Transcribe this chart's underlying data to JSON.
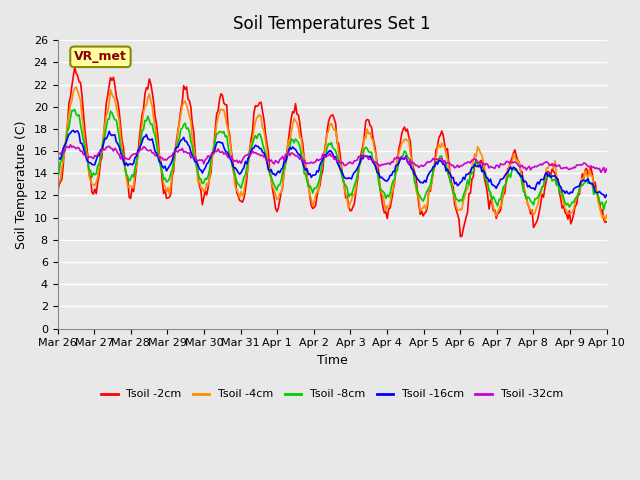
{
  "title": "Soil Temperatures Set 1",
  "xlabel": "Time",
  "ylabel": "Soil Temperature (C)",
  "ylim": [
    0,
    26
  ],
  "yticks": [
    0,
    2,
    4,
    6,
    8,
    10,
    12,
    14,
    16,
    18,
    20,
    22,
    24,
    26
  ],
  "annotation_text": "VR_met",
  "annotation_color": "#8B0000",
  "annotation_bg": "#FFFFA0",
  "series_labels": [
    "Tsoil -2cm",
    "Tsoil -4cm",
    "Tsoil -8cm",
    "Tsoil -16cm",
    "Tsoil -32cm"
  ],
  "series_colors": [
    "#FF0000",
    "#FF8C00",
    "#00CC00",
    "#0000FF",
    "#CC00CC"
  ],
  "background_color": "#E8E8E8",
  "grid_color": "#FFFFFF",
  "title_fontsize": 12,
  "axis_fontsize": 9,
  "tick_fontsize": 8,
  "xtick_labels": [
    "Mar 26",
    "Mar 27",
    "Mar 28",
    "Mar 29",
    "Mar 30",
    "Mar 31",
    "Apr 1",
    "Apr 2",
    "Apr 3",
    "Apr 4",
    "Apr 5",
    "Apr 6",
    "Apr 7",
    "Apr 8",
    "Apr 9",
    "Apr 10"
  ],
  "num_points": 384
}
